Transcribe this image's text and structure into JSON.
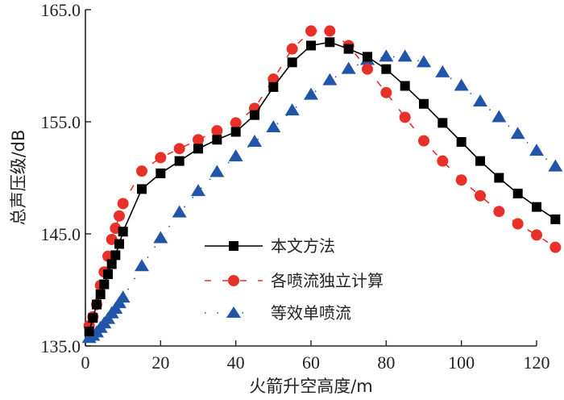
{
  "chart_data": {
    "type": "line",
    "title": "",
    "xlabel": "火箭升空高度/m",
    "ylabel": "总声压级/dB",
    "xlim": [
      0,
      125
    ],
    "ylim": [
      135.0,
      165.0
    ],
    "x_ticks": [
      "0",
      "20",
      "40",
      "60",
      "80",
      "100",
      "120"
    ],
    "x_tick_values": [
      0,
      20,
      40,
      60,
      80,
      100,
      120
    ],
    "y_ticks": [
      "135.0",
      "145.0",
      "155.0",
      "165.0"
    ],
    "y_tick_values": [
      135,
      145,
      155,
      165
    ],
    "grid": false,
    "legend_position": "center-left",
    "series": [
      {
        "name": "本文方法",
        "color": "#000000",
        "marker": "square",
        "line": "solid",
        "x": [
          1,
          2,
          3,
          4,
          5,
          6,
          7,
          8,
          9,
          10,
          15,
          20,
          25,
          30,
          35,
          40,
          45,
          50,
          55,
          60,
          65,
          70,
          75,
          80,
          85,
          90,
          95,
          100,
          105,
          110,
          115,
          120,
          125
        ],
        "y": [
          136.3,
          137.5,
          138.7,
          139.6,
          140.5,
          141.4,
          142.3,
          143.1,
          144.1,
          145.2,
          149.0,
          150.4,
          151.5,
          152.6,
          153.4,
          154.1,
          155.6,
          158.1,
          160.3,
          161.8,
          162.1,
          161.5,
          160.8,
          159.7,
          158.2,
          156.6,
          154.9,
          153.2,
          151.5,
          150.0,
          148.6,
          147.4,
          146.3
        ]
      },
      {
        "name": "各喷流独立计算",
        "color": "#e8302a",
        "marker": "circle",
        "line": "dashed",
        "x": [
          1,
          2,
          3,
          4,
          5,
          6,
          7,
          8,
          9,
          10,
          15,
          20,
          25,
          30,
          35,
          40,
          45,
          50,
          55,
          60,
          65,
          70,
          75,
          80,
          85,
          90,
          95,
          100,
          105,
          110,
          115,
          120,
          125
        ],
        "y": [
          136.8,
          137.6,
          138.7,
          140.4,
          141.6,
          143.0,
          144.5,
          145.5,
          146.6,
          147.7,
          150.6,
          151.8,
          152.6,
          153.4,
          154.2,
          154.9,
          156.2,
          158.8,
          161.5,
          163.1,
          163.1,
          161.8,
          159.7,
          157.6,
          155.4,
          153.3,
          151.5,
          149.8,
          148.4,
          147.0,
          145.9,
          144.9,
          143.8
        ]
      },
      {
        "name": "等效单喷流",
        "color": "#2155a8",
        "marker": "triangle",
        "line": "dotted",
        "x": [
          1,
          2,
          3,
          4,
          5,
          6,
          7,
          8,
          9,
          10,
          15,
          20,
          25,
          30,
          35,
          40,
          45,
          50,
          55,
          60,
          65,
          70,
          75,
          80,
          85,
          90,
          95,
          100,
          105,
          110,
          115,
          120,
          125
        ],
        "y": [
          135.7,
          135.9,
          136.2,
          136.6,
          137.0,
          137.4,
          137.9,
          138.3,
          138.8,
          139.3,
          142.1,
          144.6,
          146.9,
          148.8,
          150.5,
          151.9,
          153.2,
          154.5,
          156.0,
          157.4,
          158.7,
          159.7,
          160.5,
          160.8,
          160.8,
          160.3,
          159.4,
          158.2,
          156.8,
          155.4,
          153.9,
          152.4,
          151.0
        ]
      }
    ]
  }
}
